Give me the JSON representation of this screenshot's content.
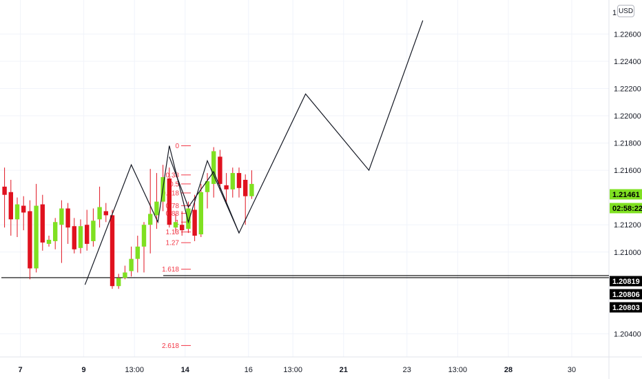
{
  "currency_button": "USD",
  "colors": {
    "up": "#7fe021",
    "down": "#e0121f",
    "wick": "#e0121f",
    "fib": "#f23645",
    "pattern": "#131722",
    "last_price_bg": "#7fe021",
    "level_bg": "#000000",
    "grid": "#f0f3fa",
    "axis": "#e0e3eb"
  },
  "chart_data": {
    "type": "candlestick",
    "y_axis": {
      "ylim": [
        1.2023,
        1.2285
      ],
      "ticks": [
        "1.22600",
        "1.22400",
        "1.22200",
        "1.22000",
        "1.21800",
        "1.21600",
        "1.21200",
        "1.21000",
        "1.20400"
      ],
      "top_partial_label": "1"
    },
    "x_axis": {
      "ticks": [
        {
          "label": "7",
          "bold": true,
          "bar": 3
        },
        {
          "label": "9",
          "bold": true,
          "bar": 13
        },
        {
          "label": "13:00",
          "bold": false,
          "bar": 21
        },
        {
          "label": "14",
          "bold": true,
          "bar": 29
        },
        {
          "label": "16",
          "bold": false,
          "bar": 39
        },
        {
          "label": "13:00",
          "bold": false,
          "bar": 46
        },
        {
          "label": "21",
          "bold": true,
          "bar": 54
        },
        {
          "label": "23",
          "bold": false,
          "bar": 64
        },
        {
          "label": "13:00",
          "bold": false,
          "bar": 72
        },
        {
          "label": "28",
          "bold": true,
          "bar": 80
        },
        {
          "label": "30",
          "bold": false,
          "bar": 90
        }
      ]
    },
    "candles": [
      {
        "o": 1.2148,
        "h": 1.2162,
        "l": 1.2118,
        "c": 1.2142
      },
      {
        "o": 1.2144,
        "h": 1.2153,
        "l": 1.2112,
        "c": 1.2124
      },
      {
        "o": 1.2124,
        "h": 1.214,
        "l": 1.2111,
        "c": 1.2135
      },
      {
        "o": 1.2134,
        "h": 1.2141,
        "l": 1.2116,
        "c": 1.2129
      },
      {
        "o": 1.213,
        "h": 1.2138,
        "l": 1.208,
        "c": 1.2088
      },
      {
        "o": 1.2088,
        "h": 1.215,
        "l": 1.2085,
        "c": 1.2134
      },
      {
        "o": 1.2135,
        "h": 1.2142,
        "l": 1.2101,
        "c": 1.2107
      },
      {
        "o": 1.2106,
        "h": 1.2112,
        "l": 1.2104,
        "c": 1.2109
      },
      {
        "o": 1.2108,
        "h": 1.2125,
        "l": 1.2102,
        "c": 1.2122
      },
      {
        "o": 1.212,
        "h": 1.2138,
        "l": 1.2092,
        "c": 1.2132
      },
      {
        "o": 1.2132,
        "h": 1.2136,
        "l": 1.2106,
        "c": 1.2118
      },
      {
        "o": 1.2119,
        "h": 1.2125,
        "l": 1.2099,
        "c": 1.2102
      },
      {
        "o": 1.2103,
        "h": 1.2124,
        "l": 1.2099,
        "c": 1.2119
      },
      {
        "o": 1.212,
        "h": 1.2131,
        "l": 1.2101,
        "c": 1.2106
      },
      {
        "o": 1.2108,
        "h": 1.2132,
        "l": 1.2104,
        "c": 1.2123
      },
      {
        "o": 1.2124,
        "h": 1.2148,
        "l": 1.2118,
        "c": 1.2133
      },
      {
        "o": 1.213,
        "h": 1.2136,
        "l": 1.2122,
        "c": 1.2127
      },
      {
        "o": 1.2127,
        "h": 1.2131,
        "l": 1.2073,
        "c": 1.2075
      },
      {
        "o": 1.2075,
        "h": 1.2084,
        "l": 1.2073,
        "c": 1.2081
      },
      {
        "o": 1.2081,
        "h": 1.209,
        "l": 1.208,
        "c": 1.2085
      },
      {
        "o": 1.2086,
        "h": 1.2104,
        "l": 1.2082,
        "c": 1.2095
      },
      {
        "o": 1.2095,
        "h": 1.2112,
        "l": 1.2085,
        "c": 1.2104
      },
      {
        "o": 1.2104,
        "h": 1.2122,
        "l": 1.2085,
        "c": 1.212
      },
      {
        "o": 1.212,
        "h": 1.2161,
        "l": 1.2099,
        "c": 1.2128
      },
      {
        "o": 1.2127,
        "h": 1.2158,
        "l": 1.2117,
        "c": 1.2137
      },
      {
        "o": 1.2137,
        "h": 1.2164,
        "l": 1.213,
        "c": 1.2155
      },
      {
        "o": 1.2154,
        "h": 1.2162,
        "l": 1.2118,
        "c": 1.212
      },
      {
        "o": 1.2118,
        "h": 1.2128,
        "l": 1.2114,
        "c": 1.2122
      },
      {
        "o": 1.212,
        "h": 1.213,
        "l": 1.2112,
        "c": 1.2116
      },
      {
        "o": 1.2117,
        "h": 1.2137,
        "l": 1.2114,
        "c": 1.2132
      },
      {
        "o": 1.2131,
        "h": 1.2142,
        "l": 1.2108,
        "c": 1.2112
      },
      {
        "o": 1.2113,
        "h": 1.215,
        "l": 1.2111,
        "c": 1.2144
      },
      {
        "o": 1.2144,
        "h": 1.2158,
        "l": 1.2132,
        "c": 1.2152
      },
      {
        "o": 1.215,
        "h": 1.2177,
        "l": 1.214,
        "c": 1.2174
      },
      {
        "o": 1.217,
        "h": 1.2175,
        "l": 1.2145,
        "c": 1.215
      },
      {
        "o": 1.2149,
        "h": 1.2158,
        "l": 1.2135,
        "c": 1.2146
      },
      {
        "o": 1.2146,
        "h": 1.2162,
        "l": 1.214,
        "c": 1.2158
      },
      {
        "o": 1.2158,
        "h": 1.2162,
        "l": 1.214,
        "c": 1.2147
      },
      {
        "o": 1.2153,
        "h": 1.2157,
        "l": 1.212,
        "c": 1.2141
      },
      {
        "o": 1.2141,
        "h": 1.216,
        "l": 1.2139,
        "c": 1.215
      }
    ],
    "fibonacci": {
      "anchor_high": 1.2178,
      "anchor_low": 1.2122,
      "levels": [
        {
          "label": "0",
          "ratio": 0
        },
        {
          "label": "0.38",
          "ratio": 0.382
        },
        {
          "label": "0.5",
          "ratio": 0.5
        },
        {
          "label": "0.618",
          "ratio": 0.618
        },
        {
          "label": "0.78",
          "ratio": 0.786
        },
        {
          "label": "0.88",
          "ratio": 0.886
        },
        {
          "label": "1",
          "ratio": 1
        },
        {
          "label": "1.13",
          "ratio": 1.13
        },
        {
          "label": "1.27",
          "ratio": 1.27
        },
        {
          "label": "1.618",
          "ratio": 1.618
        },
        {
          "label": "2.618",
          "ratio": 2.618
        }
      ]
    },
    "pattern_path": [
      {
        "bar": 13.2,
        "price": 1.2076
      },
      {
        "bar": 20.5,
        "price": 1.2164
      },
      {
        "bar": 24.7,
        "price": 1.2122
      },
      {
        "bar": 26.5,
        "price": 1.2178
      },
      {
        "bar": 29.5,
        "price": 1.2122
      },
      {
        "bar": 32.5,
        "price": 1.2167
      },
      {
        "bar": 37.5,
        "price": 1.2114
      },
      {
        "bar": 48.0,
        "price": 1.2216
      },
      {
        "bar": 58.0,
        "price": 1.216
      },
      {
        "bar": 66.5,
        "price": 1.227
      }
    ],
    "bullish_wedge_path": [
      {
        "bar": 26.5,
        "price": 1.217
      },
      {
        "bar": 29.5,
        "price": 1.2133
      },
      {
        "bar": 33.5,
        "price": 1.2159
      },
      {
        "bar": 37.5,
        "price": 1.2114
      }
    ],
    "horizontal_level": {
      "price": 1.20812,
      "from_bar": 0,
      "to_bar": 98
    },
    "fib_extension_line": {
      "price": 1.20817,
      "from_bar": 25,
      "to_bar": 98
    },
    "price_labels": [
      {
        "text": "1.21461",
        "price": 1.21461,
        "style": "last"
      },
      {
        "text": "02:58:22",
        "price": 1.2144,
        "style": "timer"
      },
      {
        "text": "1.20819",
        "price": 1.20819,
        "style": "level"
      },
      {
        "text": "1.20806",
        "price": 1.20806,
        "style": "level"
      },
      {
        "text": "1.20803",
        "price": 1.20803,
        "style": "level"
      }
    ]
  }
}
